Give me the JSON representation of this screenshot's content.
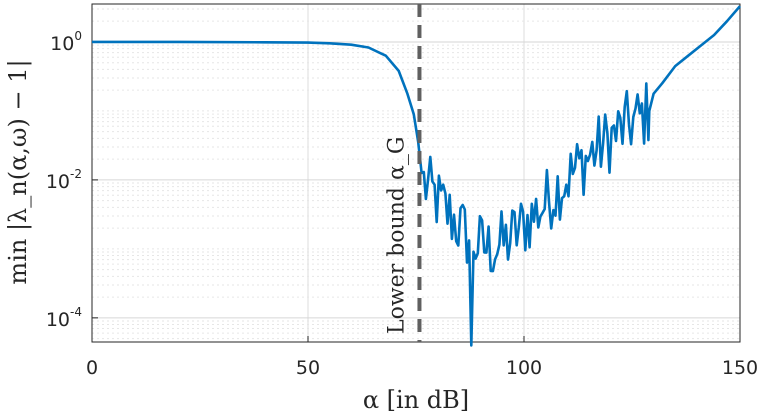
{
  "chart_data": {
    "type": "line",
    "xlabel": "α [in dB]",
    "ylabel": "min |λ_n(α,ω) − 1|",
    "xlim": [
      0,
      150
    ],
    "ylim_log10": [
      -4.35,
      0.55
    ],
    "y_scale": "log",
    "grid": "on (major and minor)",
    "x_ticks": [
      0,
      50,
      100,
      150
    ],
    "y_ticks": [
      {
        "base": "10",
        "exp": "0",
        "log10": 0
      },
      {
        "base": "10",
        "exp": "-2",
        "log10": -2
      },
      {
        "base": "10",
        "exp": "-4",
        "log10": -4
      }
    ],
    "series_color": "#0072BD",
    "series": [
      {
        "x": [
          0,
          20,
          40,
          50,
          55,
          60,
          64,
          68,
          71,
          73,
          74.5,
          75.5,
          76.3
        ],
        "log10y": [
          0.0,
          0.0,
          -0.005,
          -0.01,
          -0.02,
          -0.04,
          -0.08,
          -0.2,
          -0.42,
          -0.75,
          -1.05,
          -1.45,
          -1.9
        ]
      }
    ],
    "noisy_segment": {
      "x_start": 76.3,
      "x_end": 129,
      "step": 0.5,
      "trend_x": [
        76.3,
        80,
        84,
        88,
        92,
        96,
        100,
        104,
        108,
        112,
        116,
        120,
        124,
        127,
        129
      ],
      "trend_log10y": [
        -2.0,
        -2.3,
        -2.6,
        -2.9,
        -3.0,
        -2.9,
        -2.65,
        -2.4,
        -2.1,
        -1.85,
        -1.6,
        -1.4,
        -1.2,
        -1.1,
        -1.0
      ],
      "amplitude": 0.5,
      "min_point": {
        "x": 88,
        "log10y": -4.4
      }
    },
    "tail_series": {
      "x": [
        129,
        130,
        132,
        135,
        138,
        141,
        144,
        147,
        150
      ],
      "log10y": [
        -1.0,
        -0.75,
        -0.6,
        -0.35,
        -0.2,
        -0.05,
        0.1,
        0.3,
        0.52
      ]
    },
    "vertical_line": {
      "x": 75.8,
      "style": "dashed",
      "color": "#606060"
    },
    "annotation": "Lower bound α_G"
  }
}
